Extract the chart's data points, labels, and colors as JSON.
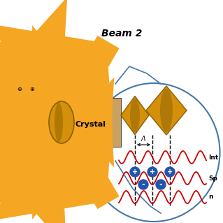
{
  "beam2_text": "Beam 2",
  "crystal_text": "Crystal",
  "lambda_text": "Λ",
  "int_text": "Int",
  "sp_text": "Sp",
  "n_text": "n",
  "bg_color": "#ffffff",
  "orange_color": "#F5A623",
  "gold_color": "#D4900A",
  "crystal_bg": "#C8A060",
  "wave_color": "#CC0000",
  "blue_sphere": "#2255AA",
  "circle_color": "#4477AA",
  "lens_edge": "#8B6000"
}
